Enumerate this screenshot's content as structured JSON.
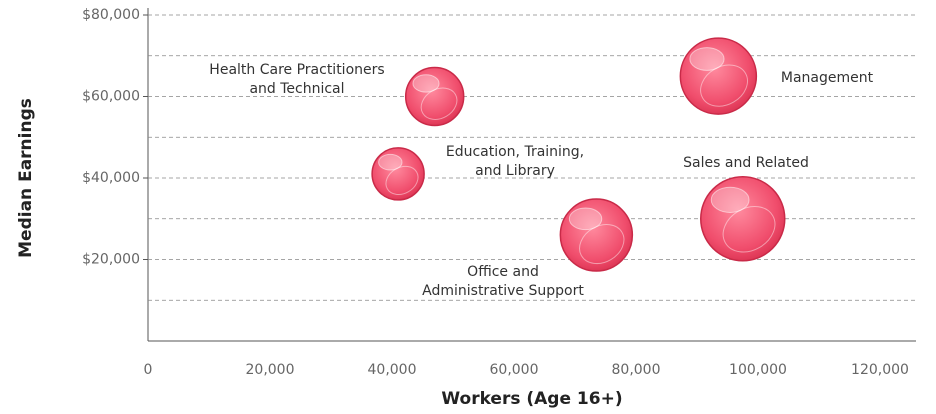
{
  "chart_data": {
    "type": "bubble",
    "x_label": "Workers (Age 16+)",
    "y_label": "Median Earnings",
    "categories": [
      [
        "Health Care Practitioners",
        "and Technical"
      ],
      [
        "Education, Training,",
        "and Library"
      ],
      [
        "Management"
      ],
      [
        "Office and",
        "Administrative Support"
      ],
      [
        "Sales and Related"
      ]
    ],
    "x": [
      47000,
      41000,
      93500,
      73500,
      97500
    ],
    "values": [
      60000,
      41000,
      65000,
      26000,
      30000
    ],
    "sizes": [
      29,
      26,
      38,
      36,
      42
    ],
    "color": "#f04d6c",
    "xlim": [
      0,
      126000
    ],
    "ylim": [
      0,
      82000
    ],
    "xticks": [
      0,
      {
        "value": 20000,
        "label": "20,000"
      },
      {
        "value": 40000,
        "label": "40,000"
      },
      {
        "value": 60000,
        "label": "60,000"
      },
      {
        "value": 80000,
        "label": "80,000"
      },
      {
        "value": 100000,
        "label": "100,000"
      },
      {
        "value": 120000,
        "label": "120,000"
      }
    ],
    "yticks": [
      {
        "value": 20000,
        "label": "$20,000"
      },
      {
        "value": 40000,
        "label": "$40,000"
      },
      {
        "value": 60000,
        "label": "$60,000"
      },
      {
        "value": 80000,
        "label": "$80,000"
      }
    ],
    "ygrid": [
      10000,
      20000,
      30000,
      40000,
      50000,
      60000,
      70000,
      80000
    ],
    "grid": true
  }
}
